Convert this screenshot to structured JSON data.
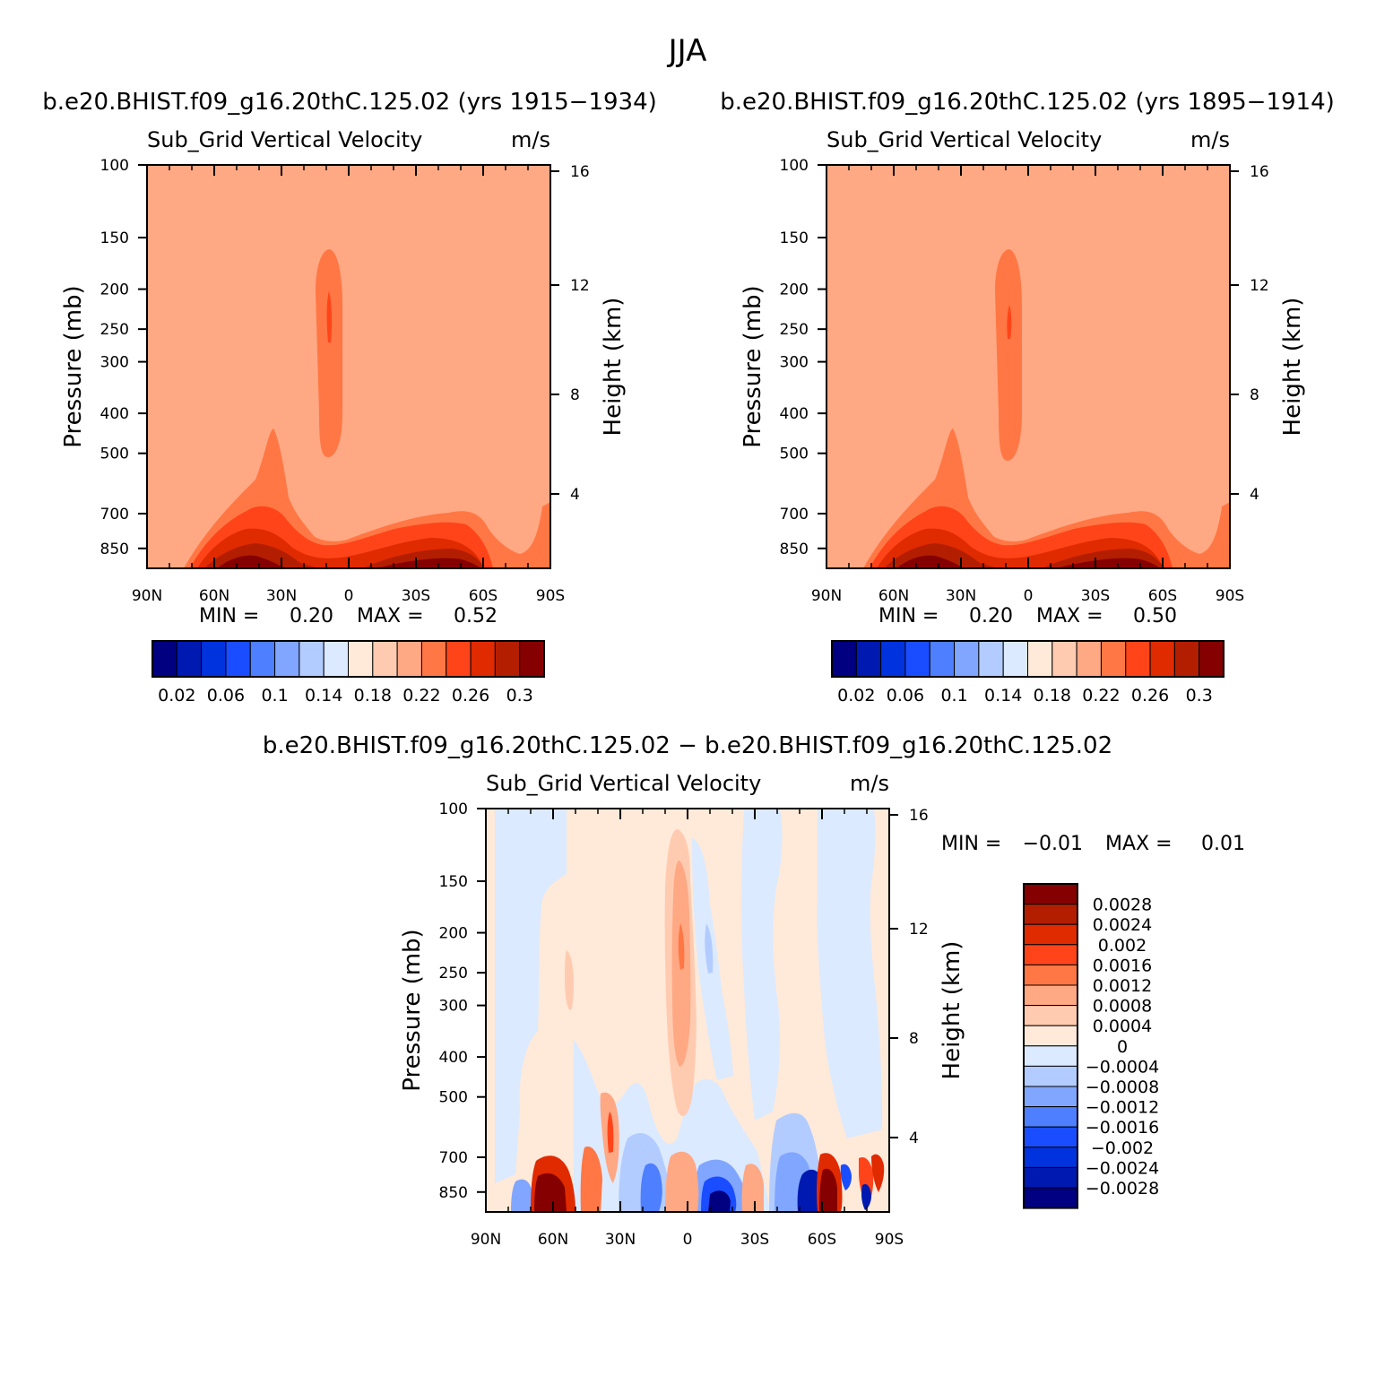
{
  "main_title": "JJA",
  "colors": {
    "seq": [
      "#000080",
      "#0019b0",
      "#0033dd",
      "#1a4dff",
      "#4d7fff",
      "#80a6ff",
      "#b3ccff",
      "#dbeaff",
      "#ffe9d9",
      "#ffcbb0",
      "#ffa884",
      "#ff7744",
      "#ff4419",
      "#e02a00",
      "#b31e00",
      "#850000"
    ],
    "diff": [
      "#850000",
      "#b31e00",
      "#e02a00",
      "#ff4419",
      "#ff7744",
      "#ffa884",
      "#ffcbb0",
      "#ffe9d9",
      "#dbeaff",
      "#b3ccff",
      "#80a6ff",
      "#4d7fff",
      "#1a4dff",
      "#0033dd",
      "#0019b0",
      "#000080"
    ]
  },
  "panels": [
    {
      "id": "p1",
      "case_title": "b.e20.BHIST.f09_g16.20thC.125.02 (yrs 1915−1934)",
      "variable": "Sub_Grid Vertical Velocity",
      "units": "m/s",
      "ylabel": "Pressure (mb)",
      "ylabel_right": "Height (km)",
      "min_label": "MIN =",
      "min_value": "0.20",
      "max_label": "MAX =",
      "max_value": "0.52",
      "colorbar_labels": [
        "0.02",
        "0.06",
        "0.1",
        "0.14",
        "0.18",
        "0.22",
        "0.26",
        "0.3"
      ]
    },
    {
      "id": "p2",
      "case_title": "b.e20.BHIST.f09_g16.20thC.125.02 (yrs 1895−1914)",
      "variable": "Sub_Grid Vertical Velocity",
      "units": "m/s",
      "ylabel": "Pressure (mb)",
      "ylabel_right": "Height (km)",
      "min_label": "MIN =",
      "min_value": "0.20",
      "max_label": "MAX =",
      "max_value": "0.50",
      "colorbar_labels": [
        "0.02",
        "0.06",
        "0.1",
        "0.14",
        "0.18",
        "0.22",
        "0.26",
        "0.3"
      ]
    },
    {
      "id": "p3",
      "case_title": "b.e20.BHIST.f09_g16.20thC.125.02 − b.e20.BHIST.f09_g16.20thC.125.02",
      "variable": "Sub_Grid Vertical Velocity",
      "units": "m/s",
      "ylabel": "Pressure (mb)",
      "ylabel_right": "Height (km)",
      "min_label": "MIN =",
      "min_value": "−0.01",
      "max_label": "MAX =",
      "max_value": "0.01",
      "colorbar_labels": [
        "0.0028",
        "0.0024",
        "0.002",
        "0.0016",
        "0.0012",
        "0.0008",
        "0.0004",
        "0",
        "−0.0004",
        "−0.0008",
        "−0.0012",
        "−0.0016",
        "−0.002",
        "−0.0024",
        "−0.0028"
      ]
    }
  ],
  "chart_data": [
    {
      "type": "heatmap",
      "title": "b.e20.BHIST.f09_g16.20thC.125.02 (yrs 1915−1934)",
      "subtitle": "Sub_Grid Vertical Velocity",
      "units": "m/s",
      "xlabel": "",
      "ylabel": "Pressure (mb)",
      "ylabel_right": "Height (km)",
      "x_ticks": [
        "90N",
        "60N",
        "30N",
        "0",
        "30S",
        "60S",
        "90S"
      ],
      "x_range": [
        90,
        -90
      ],
      "y_ticks": [
        100,
        150,
        200,
        250,
        300,
        400,
        500,
        700,
        850
      ],
      "y_range": [
        100,
        950
      ],
      "y_scale": "log",
      "right_ticks": [
        4,
        8,
        12,
        16
      ],
      "min": 0.2,
      "max": 0.52,
      "contour_levels": [
        0.02,
        0.04,
        0.06,
        0.08,
        0.1,
        0.12,
        0.14,
        0.16,
        0.18,
        0.2,
        0.22,
        0.24,
        0.26,
        0.28,
        0.3
      ]
    },
    {
      "type": "heatmap",
      "title": "b.e20.BHIST.f09_g16.20thC.125.02 (yrs 1895−1914)",
      "subtitle": "Sub_Grid Vertical Velocity",
      "units": "m/s",
      "xlabel": "",
      "ylabel": "Pressure (mb)",
      "ylabel_right": "Height (km)",
      "x_ticks": [
        "90N",
        "60N",
        "30N",
        "0",
        "30S",
        "60S",
        "90S"
      ],
      "x_range": [
        90,
        -90
      ],
      "y_ticks": [
        100,
        150,
        200,
        250,
        300,
        400,
        500,
        700,
        850
      ],
      "y_range": [
        100,
        950
      ],
      "y_scale": "log",
      "right_ticks": [
        4,
        8,
        12,
        16
      ],
      "min": 0.2,
      "max": 0.5,
      "contour_levels": [
        0.02,
        0.04,
        0.06,
        0.08,
        0.1,
        0.12,
        0.14,
        0.16,
        0.18,
        0.2,
        0.22,
        0.24,
        0.26,
        0.28,
        0.3
      ]
    },
    {
      "type": "heatmap",
      "title": "b.e20.BHIST.f09_g16.20thC.125.02 − b.e20.BHIST.f09_g16.20thC.125.02",
      "subtitle": "Sub_Grid Vertical Velocity",
      "units": "m/s",
      "xlabel": "",
      "ylabel": "Pressure (mb)",
      "ylabel_right": "Height (km)",
      "x_ticks": [
        "90N",
        "60N",
        "30N",
        "0",
        "30S",
        "60S",
        "90S"
      ],
      "x_range": [
        90,
        -90
      ],
      "y_ticks": [
        100,
        150,
        200,
        250,
        300,
        400,
        500,
        700,
        850
      ],
      "y_range": [
        100,
        950
      ],
      "y_scale": "log",
      "right_ticks": [
        4,
        8,
        12,
        16
      ],
      "min": -0.01,
      "max": 0.01,
      "contour_levels": [
        -0.0028,
        -0.0024,
        -0.002,
        -0.0016,
        -0.0012,
        -0.0008,
        -0.0004,
        0,
        0.0004,
        0.0008,
        0.0012,
        0.0016,
        0.002,
        0.0024,
        0.0028
      ]
    }
  ]
}
